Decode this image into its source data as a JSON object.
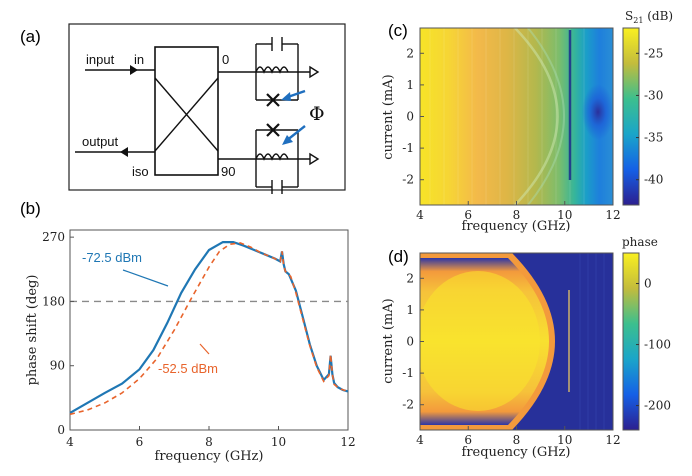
{
  "panels": {
    "a": "(a)",
    "b": "(b)",
    "c": "(c)",
    "d": "(d)"
  },
  "schematic": {
    "input_label": "input",
    "output_label": "output",
    "port_in": "in",
    "port_iso": "iso",
    "port_0": "0",
    "port_90": "90",
    "phi_label": "Φ"
  },
  "chart_data": [
    {
      "panel": "b",
      "type": "line",
      "xlabel": "frequency (GHz)",
      "ylabel": "phase shift (deg)",
      "xlim": [
        4,
        12
      ],
      "ylim": [
        0,
        280
      ],
      "xticks": [
        4,
        6,
        8,
        10,
        12
      ],
      "yticks": [
        0,
        90,
        180,
        270
      ],
      "reference_line": {
        "y": 180,
        "style": "dashed"
      },
      "series": [
        {
          "name": "-72.5 dBm",
          "color": "#1f77b4",
          "x": [
            4,
            4.5,
            5,
            5.5,
            6,
            6.4,
            6.8,
            7.2,
            7.6,
            8,
            8.4,
            8.7,
            9,
            9.3,
            9.6,
            9.9,
            10.05,
            10.1,
            10.15,
            10.2,
            10.3,
            10.5,
            10.7,
            10.9,
            11.1,
            11.3,
            11.45,
            11.5,
            11.55,
            11.6,
            11.7,
            11.85,
            12
          ],
          "y": [
            24,
            38,
            52,
            65,
            85,
            112,
            150,
            192,
            225,
            252,
            263,
            263,
            258,
            252,
            246,
            240,
            236,
            250,
            232,
            222,
            218,
            195,
            158,
            120,
            90,
            70,
            78,
            104,
            78,
            66,
            60,
            56,
            54
          ]
        },
        {
          "name": "-52.5 dBm",
          "color": "#e8642c",
          "style": "dashed",
          "x": [
            4,
            4.5,
            5,
            5.5,
            6,
            6.5,
            7,
            7.5,
            8,
            8.3,
            8.6,
            8.9,
            9.2,
            9.5,
            9.8,
            10.05,
            10.1,
            10.15,
            10.2,
            10.35,
            10.5,
            10.7,
            10.9,
            11.1,
            11.3,
            11.45,
            11.5,
            11.55,
            11.6,
            11.75,
            12
          ],
          "y": [
            22,
            28,
            38,
            52,
            72,
            100,
            140,
            185,
            228,
            250,
            260,
            262,
            256,
            248,
            242,
            236,
            250,
            230,
            222,
            215,
            192,
            155,
            118,
            88,
            68,
            76,
            106,
            78,
            64,
            58,
            54
          ]
        }
      ],
      "annotations": [
        {
          "text": "-72.5 dBm",
          "color": "#1f77b4"
        },
        {
          "text": "-52.5 dBm",
          "color": "#e8642c"
        }
      ]
    },
    {
      "panel": "c",
      "type": "heatmap",
      "quantity": "S21",
      "xlabel": "frequency (GHz)",
      "ylabel": "current (mA)",
      "xlim": [
        4,
        12
      ],
      "ylim": [
        -2.8,
        2.8
      ],
      "xticks": [
        4,
        6,
        8,
        10,
        12
      ],
      "yticks": [
        -2,
        -1,
        0,
        1,
        2
      ],
      "colorbar": {
        "label_main": "S",
        "label_sub": "21",
        "label_unit": " (dB)",
        "ticks": [
          -25,
          -30,
          -35,
          -40
        ],
        "range": [
          -43,
          -22
        ]
      }
    },
    {
      "panel": "d",
      "type": "heatmap",
      "quantity": "phase",
      "xlabel": "frequency (GHz)",
      "ylabel": "current (mA)",
      "xlim": [
        4,
        12
      ],
      "ylim": [
        -2.8,
        2.8
      ],
      "xticks": [
        4,
        6,
        8,
        10,
        12
      ],
      "yticks": [
        -2,
        -1,
        0,
        1,
        2
      ],
      "colorbar": {
        "label": "phase",
        "ticks": [
          0,
          -100,
          -200
        ],
        "range": [
          -240,
          50
        ]
      }
    }
  ]
}
